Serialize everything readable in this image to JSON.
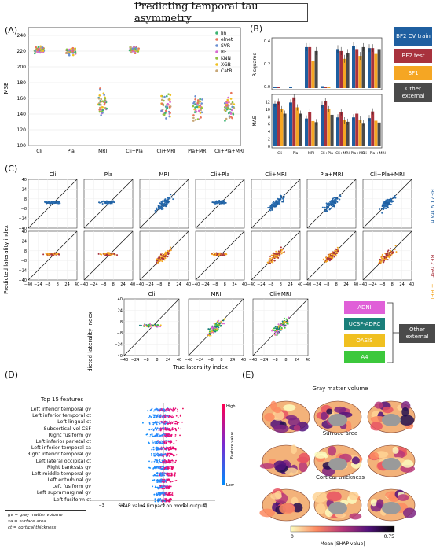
{
  "figure_title": "Predicting temporal tau asymmetry",
  "panel_labels": {
    "A": "(A)",
    "B": "(B)",
    "C": "(C)",
    "D": "(D)",
    "E": "(E)"
  },
  "colors": {
    "bf2_train": "#1f5fa0",
    "bf2_test": "#a8323d",
    "bf1": "#f5a623",
    "other": "#4a4a4a",
    "adni": "#e060d8",
    "ucsf": "#1a7f7a",
    "oasis": "#f0c020",
    "a4": "#3cc83c"
  },
  "panelA": {
    "ylabel": "MSE",
    "yticks": [
      "100",
      "120",
      "140",
      "160",
      "180",
      "200",
      "220",
      "240"
    ],
    "xticks": [
      "Cli",
      "Pla",
      "MRI",
      "Cli+Pla",
      "Cli+MRI",
      "Pla+MRI",
      "Cli+Pla+MRI"
    ],
    "legend": [
      "lin",
      "elnet",
      "SVR",
      "RF",
      "KNN",
      "XGB",
      "CatB"
    ]
  },
  "panelB": {
    "top_ylabel": "R-squared",
    "bottom_ylabel": "MAE",
    "top_yticks": [
      "0.4",
      "0.2",
      "0.0"
    ],
    "bottom_yticks": [
      "12",
      "10",
      "8",
      "6",
      "4",
      "2",
      "0"
    ],
    "xticks": [
      "Cli",
      "Pla",
      "MRI",
      "Cli+Pla",
      "Cli+MRI",
      "Pla+MRI",
      "Cli+Pla +MRI"
    ],
    "legend": {
      "train": "BF2 CV train",
      "test": "BF2 test",
      "bf1": "BF1",
      "other": "Other external"
    }
  },
  "panelC": {
    "columns": [
      "Cli",
      "Pla",
      "MRI",
      "Cli+Pla",
      "Cli+MRI",
      "Pla+MRI",
      "Cli+Pla+MRI"
    ],
    "bottom_columns": [
      "Cli",
      "MRI",
      "Cli+MRI"
    ],
    "ylabel": "Predicted laterality index",
    "xlabel": "True laterality index",
    "yticks": [
      "40",
      "24",
      "8",
      "−8",
      "−24",
      "−40"
    ],
    "xticks": [
      "−40",
      "−24",
      "−8",
      "8",
      "24",
      "40"
    ],
    "row1_side": "BF2 CV train",
    "row2_side_a": "BF2 test",
    "row2_side_b": "+ BF1",
    "legend": {
      "adni": "ADNI",
      "ucsf": "UCSF-ADRC",
      "oasis": "OASIS",
      "a4": "A4",
      "other": "Other external"
    }
  },
  "panelD": {
    "header": "Top 15 features",
    "features": [
      "Left inferior temporal gv",
      "Left inferior temporal ct",
      "Left lingual ct",
      "Subcortical vol CSF",
      "Right fusiform gv",
      "Left inferior parietal ct",
      "Left inferior temporal sa",
      "Right inferior temporal gv",
      "Left lateral occipital ct",
      "Right bankssts gv",
      "Left middle temporal gv",
      "Left entorhinal gv",
      "Left fusiform gv",
      "Left supramarginal gv",
      "Left fusiform ct"
    ],
    "xticks": [
      "−3",
      "−2",
      "−1",
      "0",
      "1",
      "2"
    ],
    "xlabel": "SHAP value (impact on model output)",
    "cbar_high": "High",
    "cbar_low": "Low",
    "cbar_label": "Feature value",
    "notes": [
      "gv = gray matter volume",
      "sa = surface area",
      "ct = cortical thickness"
    ]
  },
  "panelE": {
    "row_titles": [
      "Gray matter volume",
      "Surface area",
      "Cortical thickness"
    ],
    "cbar_min": "0",
    "cbar_max": "0.75",
    "cbar_label": "Mean |SHAP value|"
  }
}
